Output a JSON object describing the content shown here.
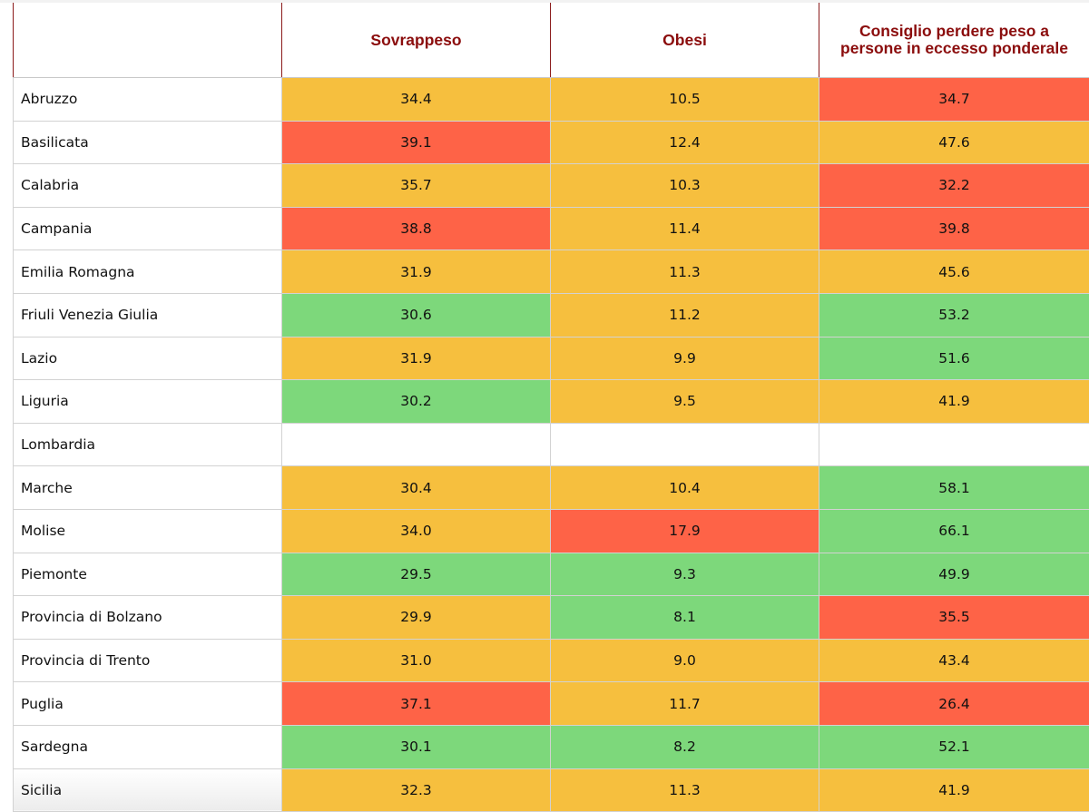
{
  "colors": {
    "yellow": "#f6bf3e",
    "red": "#fe6347",
    "green": "#7dd87b",
    "white": "#ffffff",
    "header_text": "#8b0d0d"
  },
  "headers": [
    "",
    "Sovrappeso",
    "Obesi",
    "Consiglio perdere peso a persone in eccesso ponderale"
  ],
  "rows": [
    {
      "region": "Abruzzo",
      "sovrappeso": "34.4",
      "sovrappeso_color": "yellow",
      "obesi": "10.5",
      "obesi_color": "yellow",
      "consiglio": "34.7",
      "consiglio_color": "red"
    },
    {
      "region": "Basilicata",
      "sovrappeso": "39.1",
      "sovrappeso_color": "red",
      "obesi": "12.4",
      "obesi_color": "yellow",
      "consiglio": "47.6",
      "consiglio_color": "yellow"
    },
    {
      "region": "Calabria",
      "sovrappeso": "35.7",
      "sovrappeso_color": "yellow",
      "obesi": "10.3",
      "obesi_color": "yellow",
      "consiglio": "32.2",
      "consiglio_color": "red"
    },
    {
      "region": "Campania",
      "sovrappeso": "38.8",
      "sovrappeso_color": "red",
      "obesi": "11.4",
      "obesi_color": "yellow",
      "consiglio": "39.8",
      "consiglio_color": "red"
    },
    {
      "region": "Emilia Romagna",
      "sovrappeso": "31.9",
      "sovrappeso_color": "yellow",
      "obesi": "11.3",
      "obesi_color": "yellow",
      "consiglio": "45.6",
      "consiglio_color": "yellow"
    },
    {
      "region": "Friuli Venezia Giulia",
      "sovrappeso": "30.6",
      "sovrappeso_color": "green",
      "obesi": "11.2",
      "obesi_color": "yellow",
      "consiglio": "53.2",
      "consiglio_color": "green"
    },
    {
      "region": "Lazio",
      "sovrappeso": "31.9",
      "sovrappeso_color": "yellow",
      "obesi": "9.9",
      "obesi_color": "yellow",
      "consiglio": "51.6",
      "consiglio_color": "green"
    },
    {
      "region": "Liguria",
      "sovrappeso": "30.2",
      "sovrappeso_color": "green",
      "obesi": "9.5",
      "obesi_color": "yellow",
      "consiglio": "41.9",
      "consiglio_color": "yellow"
    },
    {
      "region": "Lombardia",
      "sovrappeso": "",
      "sovrappeso_color": "white",
      "obesi": "",
      "obesi_color": "white",
      "consiglio": "",
      "consiglio_color": "white"
    },
    {
      "region": "Marche",
      "sovrappeso": "30.4",
      "sovrappeso_color": "yellow",
      "obesi": "10.4",
      "obesi_color": "yellow",
      "consiglio": "58.1",
      "consiglio_color": "green"
    },
    {
      "region": "Molise",
      "sovrappeso": "34.0",
      "sovrappeso_color": "yellow",
      "obesi": "17.9",
      "obesi_color": "red",
      "consiglio": "66.1",
      "consiglio_color": "green"
    },
    {
      "region": "Piemonte",
      "sovrappeso": "29.5",
      "sovrappeso_color": "green",
      "obesi": "9.3",
      "obesi_color": "green",
      "consiglio": "49.9",
      "consiglio_color": "green"
    },
    {
      "region": "Provincia di Bolzano",
      "sovrappeso": "29.9",
      "sovrappeso_color": "yellow",
      "obesi": "8.1",
      "obesi_color": "green",
      "consiglio": "35.5",
      "consiglio_color": "red"
    },
    {
      "region": "Provincia di Trento",
      "sovrappeso": "31.0",
      "sovrappeso_color": "yellow",
      "obesi": "9.0",
      "obesi_color": "yellow",
      "consiglio": "43.4",
      "consiglio_color": "yellow"
    },
    {
      "region": "Puglia",
      "sovrappeso": "37.1",
      "sovrappeso_color": "red",
      "obesi": "11.7",
      "obesi_color": "yellow",
      "consiglio": "26.4",
      "consiglio_color": "red"
    },
    {
      "region": "Sardegna",
      "sovrappeso": "30.1",
      "sovrappeso_color": "green",
      "obesi": "8.2",
      "obesi_color": "green",
      "consiglio": "52.1",
      "consiglio_color": "green"
    },
    {
      "region": "Sicilia",
      "sovrappeso": "32.3",
      "sovrappeso_color": "yellow",
      "obesi": "11.3",
      "obesi_color": "yellow",
      "consiglio": "41.9",
      "consiglio_color": "yellow"
    }
  ]
}
